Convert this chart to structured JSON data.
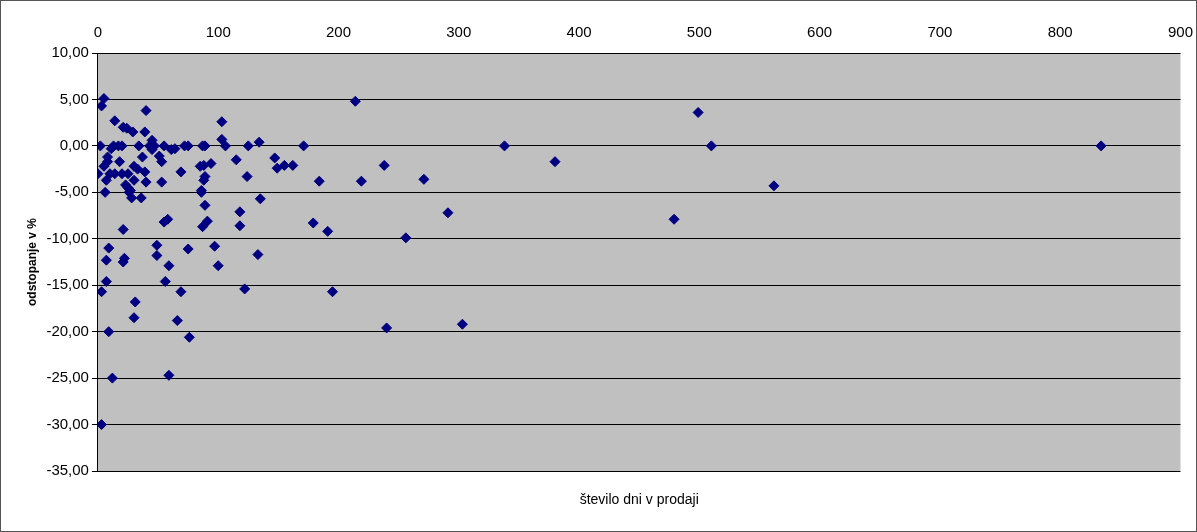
{
  "chart_data": {
    "type": "scatter",
    "xlabel": "število dni v prodaji",
    "ylabel": "odstopanje v %",
    "xlim": [
      0,
      900
    ],
    "xticks": [
      0,
      100,
      200,
      300,
      400,
      500,
      600,
      700,
      800,
      900
    ],
    "ylim": [
      -35,
      10
    ],
    "yticks": [
      {
        "value": 10,
        "label": "10,00"
      },
      {
        "value": 5,
        "label": "5,00"
      },
      {
        "value": 0,
        "label": "0,00"
      },
      {
        "value": -5,
        "label": "-5,00"
      },
      {
        "value": -10,
        "label": "-10,00"
      },
      {
        "value": -15,
        "label": "-15,00"
      },
      {
        "value": -20,
        "label": "-20,00"
      },
      {
        "value": -25,
        "label": "-25,00"
      },
      {
        "value": -30,
        "label": "-30,00"
      },
      {
        "value": -35,
        "label": "-35,00"
      }
    ],
    "grid": "y",
    "legend": false,
    "marker": "diamond",
    "series": [
      {
        "color": "#000080",
        "x": [
          0,
          2,
          3,
          5,
          3,
          3,
          7,
          7,
          9,
          9,
          12,
          6,
          7,
          5,
          8,
          10,
          14,
          14,
          13,
          20,
          18,
          20,
          21,
          21,
          21,
          22,
          24,
          25,
          25,
          26,
          28,
          29,
          30,
          30,
          30,
          31,
          34,
          36,
          39,
          40,
          40,
          39,
          43,
          45,
          47,
          49,
          49,
          51,
          53,
          53,
          55,
          55,
          56,
          58,
          59,
          59,
          66,
          69,
          69,
          72,
          75,
          76,
          75,
          85,
          86,
          87,
          89,
          88,
          87,
          89,
          91,
          103,
          103,
          94,
          88,
          89,
          86,
          97,
          100,
          118,
          118,
          115,
          125,
          124,
          134,
          135,
          133,
          147,
          149,
          155,
          214,
          171,
          338,
          162,
          184,
          219,
          238,
          271,
          179,
          191,
          256,
          291,
          195,
          240,
          303,
          380,
          479,
          499,
          510,
          562,
          834,
          17,
          11,
          23,
          27,
          33,
          37,
          45,
          61,
          64,
          8,
          122,
          106
        ],
        "values": [
          -3.0,
          0,
          4.3,
          5.1,
          -15.7,
          -30.0,
          -12.3,
          -14.6,
          -11.0,
          -20.0,
          -25.0,
          -5.0,
          -3.7,
          -2.2,
          -1.7,
          -3.0,
          2.7,
          -3.0,
          0,
          0,
          -1.7,
          -3.0,
          2.0,
          -9.0,
          -12.5,
          -12.1,
          1.9,
          -3.0,
          -4.5,
          -5.0,
          -5.6,
          1.5,
          -2.2,
          -3.7,
          -18.5,
          -16.8,
          0,
          -5.6,
          -2.8,
          -3.9,
          3.8,
          1.5,
          0,
          0.6,
          0,
          -10.7,
          -11.8,
          -1.1,
          -1.7,
          -3.9,
          -8.2,
          0,
          -14.6,
          -7.9,
          -12.9,
          -24.7,
          -18.8,
          -15.7,
          -2.8,
          0,
          -11.1,
          -20.6,
          0,
          -2.2,
          -5.0,
          0,
          0,
          -3.7,
          -8.7,
          -6.4,
          -8.1,
          2.6,
          0.7,
          -1.9,
          -2.1,
          -3.3,
          -4.8,
          -10.8,
          -12.9,
          -7.1,
          -8.6,
          -1.5,
          0,
          -3.3,
          0.4,
          -5.7,
          -11.7,
          -1.3,
          -2.4,
          -2.1,
          4.8,
          0,
          0,
          -2.1,
          -3.8,
          -3.8,
          -2.1,
          -3.6,
          -8.3,
          -9.2,
          -9.9,
          -7.2,
          -15.7,
          -19.6,
          -19.2,
          -1.7,
          -7.9,
          3.6,
          0,
          -4.3,
          0,
          0,
          -0.3,
          -4.2,
          -4.8,
          -2.5,
          -1.2,
          -0.4,
          -0.4,
          -0.3,
          -1.2,
          -15.4,
          0
        ]
      }
    ]
  }
}
